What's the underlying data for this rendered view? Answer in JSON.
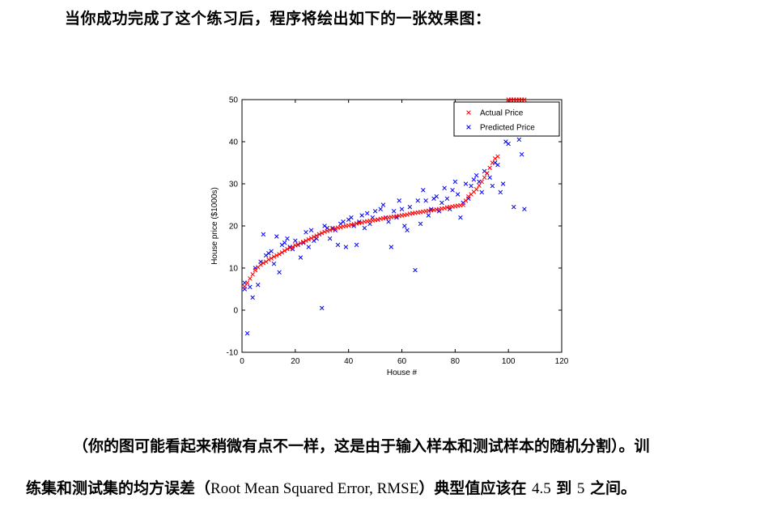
{
  "heading": "当你成功完成了这个练习后，程序将绘出如下的一张效果图：",
  "paragraph": {
    "line1": "（你的图可能看起来稍微有点不一样，这是由于输入样本和测试样本的随机分割）。训",
    "line2_pre": "练集和测试集的均方误差（",
    "line2_latin1": "Root Mean Squared Error, RMSE",
    "line2_mid": "）典型值应该在 ",
    "line2_latin2": "4.5",
    "line2_mid2": " 到 ",
    "line2_latin3": "5",
    "line2_post": " 之间。"
  },
  "colors": {
    "actual": "#ff0000",
    "predicted": "#0000ff",
    "axis": "#000000"
  },
  "chart_data": {
    "type": "scatter",
    "xlabel": "House #",
    "ylabel": "House price ($1000s)",
    "xlim": [
      0,
      120
    ],
    "ylim": [
      -10,
      50
    ],
    "xticks": [
      0,
      20,
      40,
      60,
      80,
      100,
      120
    ],
    "yticks": [
      -10,
      0,
      10,
      20,
      30,
      40,
      50
    ],
    "legend_position": "top-right",
    "series": [
      {
        "name": "Actual Price",
        "marker": "x",
        "color": "#ff0000",
        "x": [
          1,
          2,
          3,
          4,
          5,
          6,
          7,
          8,
          9,
          10,
          11,
          12,
          13,
          14,
          15,
          16,
          17,
          18,
          19,
          20,
          21,
          22,
          23,
          24,
          25,
          26,
          27,
          28,
          29,
          30,
          31,
          32,
          33,
          34,
          35,
          36,
          37,
          38,
          39,
          40,
          41,
          42,
          43,
          44,
          45,
          46,
          47,
          48,
          49,
          50,
          51,
          52,
          53,
          54,
          55,
          56,
          57,
          58,
          59,
          60,
          61,
          62,
          63,
          64,
          65,
          66,
          67,
          68,
          69,
          70,
          71,
          72,
          73,
          74,
          75,
          76,
          77,
          78,
          79,
          80,
          81,
          82,
          83,
          84,
          85,
          86,
          87,
          88,
          89,
          90,
          91,
          92,
          93,
          94,
          95,
          96,
          100,
          101,
          102,
          103,
          104,
          105,
          106
        ],
        "y": [
          5.6,
          6.5,
          7.5,
          8.5,
          9.5,
          10.2,
          10.8,
          11.2,
          11.5,
          12.0,
          12.3,
          12.7,
          13.0,
          13.3,
          13.7,
          14.1,
          14.5,
          14.8,
          15.0,
          15.4,
          15.6,
          15.9,
          16.2,
          16.5,
          16.8,
          17.1,
          17.4,
          17.7,
          18.0,
          18.3,
          18.6,
          18.8,
          19.0,
          19.2,
          19.4,
          19.6,
          19.7,
          19.9,
          20.0,
          20.1,
          20.3,
          20.4,
          20.6,
          20.7,
          20.8,
          21.0,
          21.1,
          21.2,
          21.3,
          21.4,
          21.5,
          21.7,
          21.8,
          21.9,
          22.0,
          22.1,
          22.2,
          22.3,
          22.4,
          22.5,
          22.6,
          22.7,
          22.9,
          23.0,
          23.1,
          23.2,
          23.3,
          23.4,
          23.5,
          23.6,
          23.7,
          23.8,
          23.9,
          24.0,
          24.1,
          24.2,
          24.4,
          24.5,
          24.6,
          24.7,
          24.8,
          24.9,
          25.0,
          26.0,
          27.0,
          27.5,
          28.1,
          28.7,
          29.6,
          30.5,
          31.5,
          32.5,
          33.8,
          35.0,
          36.0,
          36.5,
          50.0,
          50.0,
          50.0,
          50.0,
          50.0,
          50.0,
          50.0
        ]
      },
      {
        "name": "Predicted Price",
        "marker": "x",
        "color": "#0000ff",
        "x": [
          1,
          1,
          2,
          3,
          4,
          5,
          6,
          7,
          8,
          9,
          10,
          11,
          12,
          13,
          14,
          15,
          16,
          17,
          18,
          19,
          20,
          21,
          22,
          23,
          24,
          25,
          26,
          27,
          28,
          29,
          30,
          31,
          32,
          33,
          34,
          35,
          36,
          37,
          38,
          39,
          40,
          41,
          42,
          43,
          44,
          45,
          46,
          47,
          48,
          49,
          50,
          51,
          52,
          53,
          54,
          55,
          56,
          57,
          58,
          59,
          60,
          61,
          62,
          63,
          64,
          65,
          66,
          67,
          68,
          69,
          70,
          71,
          72,
          73,
          74,
          75,
          76,
          77,
          78,
          79,
          80,
          81,
          82,
          83,
          84,
          85,
          86,
          87,
          88,
          89,
          90,
          91,
          92,
          93,
          94,
          95,
          96,
          97,
          98,
          99,
          100,
          102,
          104,
          105,
          106
        ],
        "y": [
          5.0,
          6.5,
          -5.5,
          5.5,
          3.0,
          10.0,
          6.0,
          11.5,
          18.0,
          13.0,
          13.5,
          14.0,
          11.0,
          17.5,
          9.0,
          15.5,
          16.0,
          17.0,
          15.0,
          14.5,
          16.5,
          15.5,
          12.5,
          16.0,
          18.5,
          15.0,
          19.0,
          16.5,
          17.0,
          18.0,
          0.5,
          20.0,
          19.5,
          17.0,
          19.5,
          19.0,
          15.5,
          20.5,
          21.0,
          15.0,
          21.5,
          22.0,
          20.0,
          15.5,
          21.0,
          22.5,
          19.5,
          23.0,
          20.5,
          22.0,
          23.5,
          21.5,
          24.0,
          25.0,
          22.0,
          21.0,
          15.0,
          23.5,
          22.0,
          26.0,
          24.0,
          20.0,
          19.0,
          24.5,
          23.0,
          9.5,
          26.0,
          20.5,
          28.5,
          26.0,
          22.5,
          24.0,
          26.5,
          27.0,
          23.5,
          25.5,
          29.0,
          26.5,
          24.0,
          28.5,
          30.5,
          27.5,
          22.0,
          25.5,
          30.0,
          26.5,
          29.5,
          31.0,
          32.0,
          30.5,
          28.0,
          33.0,
          32.5,
          31.5,
          29.5,
          35.0,
          34.5,
          28.0,
          30.0,
          40.0,
          39.5,
          24.5,
          40.5,
          37.0,
          24.0
        ]
      }
    ]
  }
}
